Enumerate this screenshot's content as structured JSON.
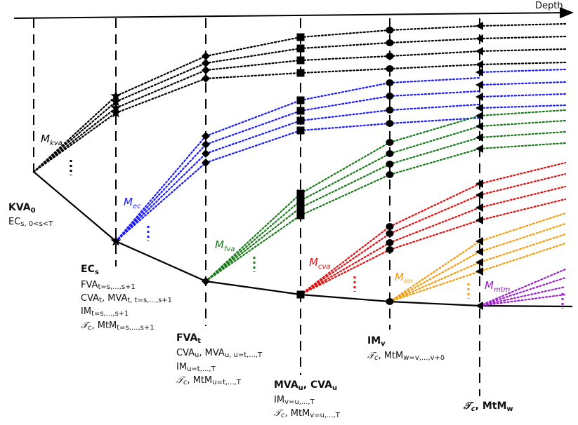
{
  "axis": {
    "label": "Depth"
  },
  "colors": {
    "kva": "#000000",
    "ec": "#1a1aff",
    "fva": "#1a7a1a",
    "cva": "#e01010",
    "im": "#f59a0a",
    "mtm": "#a020d0"
  },
  "multipliers": {
    "kva": {
      "main": "M",
      "sub": "kva"
    },
    "ec": {
      "main": "M",
      "sub": "ec"
    },
    "fva": {
      "main": "M",
      "sub": "fva"
    },
    "cva": {
      "main": "M",
      "sub": "cva"
    },
    "im": {
      "main": "M",
      "sub": "im"
    },
    "mtm": {
      "main": "M",
      "sub": "mtm"
    }
  },
  "nodes": {
    "kva": {
      "title_main": "KVA",
      "title_sub": "0",
      "line1_main": "EC",
      "line1_sub": "s, 0<s<T"
    },
    "ec": {
      "title_main": "EC",
      "title_sub": "s",
      "lines": [
        {
          "main": "FVA",
          "sub": "t=s,...,s+1"
        },
        {
          "main": "CVA",
          "sub": "t",
          "main2": ", MVA",
          "sub2": "t, t=s,...,s+1"
        },
        {
          "main": "IM",
          "sub": "t=s,...,s+1"
        },
        {
          "main": "𝒯",
          "sub": "c",
          "main2": ", MtM",
          "sub2": "t=s,...,s+1"
        }
      ]
    },
    "fva": {
      "title_main": "FVA",
      "title_sub": "t",
      "lines": [
        {
          "main": "CVA",
          "sub": "u",
          "main2": ", MVA",
          "sub2": "u, u=t,...,T"
        },
        {
          "main": "IM",
          "sub": "u=t,...,T"
        },
        {
          "main": "𝒯",
          "sub": "c",
          "main2": ", MtM",
          "sub2": "u=t,...,T"
        }
      ]
    },
    "mva": {
      "title_main": "MVA",
      "title_sub": "u",
      "title_main2": ", CVA",
      "title_sub2": "u",
      "lines": [
        {
          "main": "IM",
          "sub": "v=u,...,T"
        },
        {
          "main": "𝒯",
          "sub": "c",
          "main2": ", MtM",
          "sub2": "v=u,...,T"
        }
      ]
    },
    "im": {
      "title_main": "IM",
      "title_sub": "v",
      "lines": [
        {
          "main": "𝒯",
          "sub": "c",
          "main2": ", MtM",
          "sub2": "w=v,...,v+δ"
        }
      ]
    },
    "mtm": {
      "title_main": "𝒯",
      "title_sub": "c",
      "title_main2": ", MtM",
      "title_sub2": "w"
    }
  }
}
